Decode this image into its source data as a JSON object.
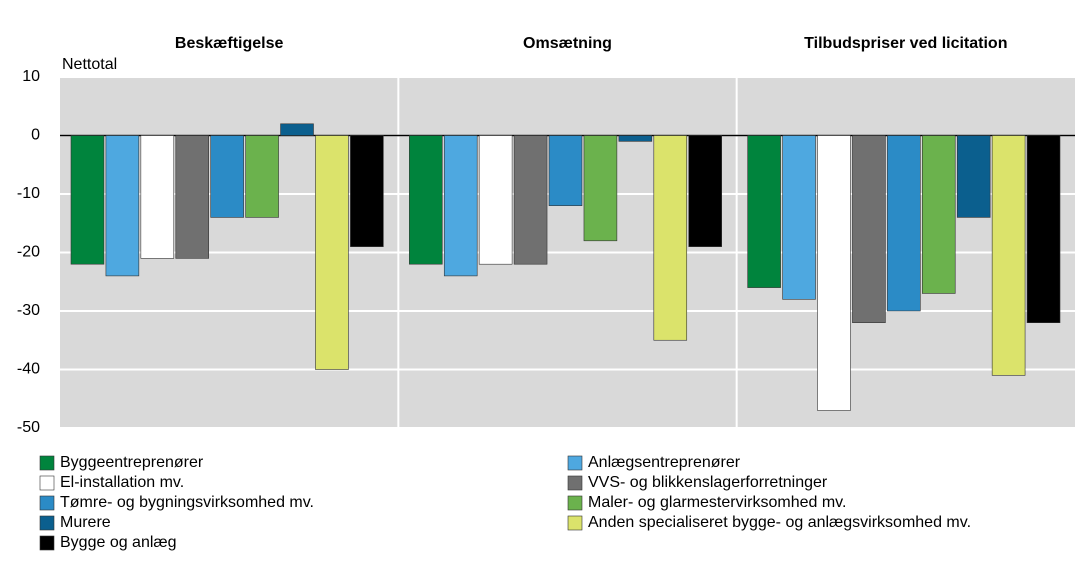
{
  "chart_data": {
    "type": "bar",
    "y_label": "Nettotal",
    "categories": [
      "Beskæftigelse",
      "Omsætning",
      "Tilbudspriser ved licitation"
    ],
    "series": [
      {
        "name": "Byggeentreprenører",
        "color": "#00843d",
        "values": [
          -22,
          -22,
          -26
        ]
      },
      {
        "name": "Anlægsentreprenører",
        "color": "#4ea8e0",
        "values": [
          -24,
          -24,
          -28
        ]
      },
      {
        "name": "El-installation mv.",
        "color": "#ffffff",
        "values": [
          -21,
          -22,
          -47
        ]
      },
      {
        "name": "VVS- og blikkenslagerforretninger",
        "color": "#707070",
        "values": [
          -21,
          -22,
          -32
        ]
      },
      {
        "name": "Tømre- og bygningsvirksomhed mv.",
        "color": "#2b8bc6",
        "values": [
          -14,
          -12,
          -30
        ]
      },
      {
        "name": "Maler- og glarmestervirksomhed mv.",
        "color": "#6bb24d",
        "values": [
          -14,
          -18,
          -27
        ]
      },
      {
        "name": "Murere",
        "color": "#0b5f8e",
        "values": [
          2,
          -1,
          -14
        ]
      },
      {
        "name": "Anden specialiseret bygge- og anlægsvirksomhed mv.",
        "color": "#dbe36b",
        "values": [
          -40,
          -35,
          -41
        ]
      },
      {
        "name": "Bygge og anlæg",
        "color": "#000000",
        "values": [
          -19,
          -19,
          -32
        ]
      }
    ],
    "ylim": [
      -50,
      10
    ],
    "yticks": [
      10,
      0,
      -10,
      -20,
      -30,
      -40,
      -50
    ],
    "grid": true
  }
}
